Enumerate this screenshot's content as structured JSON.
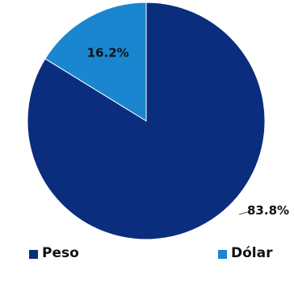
{
  "chart_data": {
    "type": "pie",
    "categories": [
      "Peso",
      "Dólar"
    ],
    "values": [
      83.8,
      16.2
    ],
    "labels": [
      "83.8%",
      "16.2%"
    ],
    "colors": [
      "#0b2d7d",
      "#1a86cf"
    ],
    "title": "",
    "legend_position": "bottom"
  },
  "legend": {
    "peso_label": "Peso",
    "dolar_label": "Dólar"
  }
}
